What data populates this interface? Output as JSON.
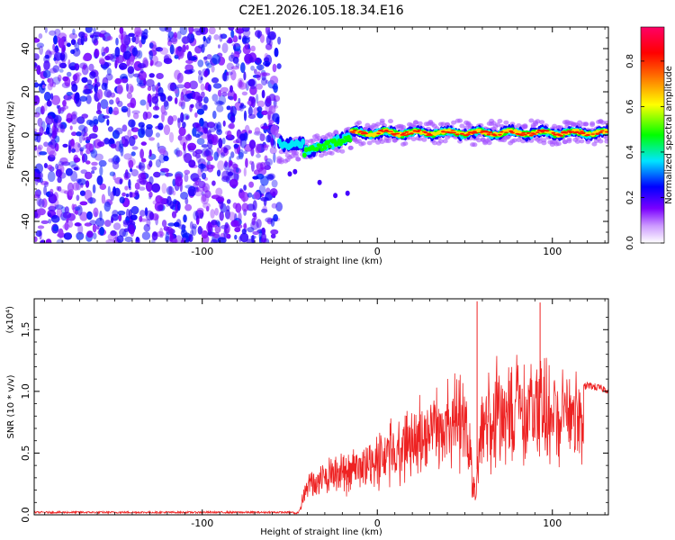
{
  "title": "C2E1.2026.105.18.34.E16",
  "chart_data": [
    {
      "type": "heatmap",
      "name": "spectrogram",
      "xlabel": "Height of straight line (km)",
      "ylabel": "Frequency (Hz)",
      "xlim": [
        -196,
        132
      ],
      "ylim": [
        -50,
        50
      ],
      "xticks": [
        -100,
        0,
        100
      ],
      "xtick_labels": [
        "-100",
        "0",
        "100"
      ],
      "yticks": [
        -40,
        -20,
        0,
        20,
        40
      ],
      "ytick_labels": [
        "-40",
        "-20",
        "0",
        "20",
        "40"
      ],
      "colorbar": {
        "label": "Normalized spectral amplitude",
        "range": [
          0,
          0.95
        ],
        "ticks": [
          0.0,
          0.2,
          0.4,
          0.6,
          0.8
        ],
        "tick_labels": [
          "0.0",
          "0.2",
          "0.4",
          "0.6",
          "0.8"
        ],
        "colors": [
          "#ffffff",
          "#7a00ff",
          "#0000ff",
          "#00e5ff",
          "#00ff00",
          "#ffff00",
          "#ff6600",
          "#ff0000",
          "#ff0066"
        ]
      },
      "regions": [
        {
          "x_range": [
            -196,
            -56
          ],
          "frequency_range": [
            -50,
            50
          ],
          "amplitude": [
            0.0,
            0.2
          ],
          "description": "noise"
        },
        {
          "x_range": [
            -56,
            -15
          ],
          "frequency_center": [
            -8,
            -2
          ],
          "amplitude": [
            0.2,
            0.5
          ]
        },
        {
          "x_range": [
            -15,
            132
          ],
          "frequency_center": [
            0,
            2
          ],
          "amplitude": [
            0.5,
            0.95
          ]
        }
      ]
    },
    {
      "type": "line",
      "name": "snr",
      "xlabel": "Height of straight line (km)",
      "ylabel": "SNR (10 * v/v)",
      "y_multiplier": "(x10⁴)",
      "xlim": [
        -196,
        132
      ],
      "ylim": [
        0,
        1.75
      ],
      "xticks": [
        -100,
        0,
        100
      ],
      "xtick_labels": [
        "-100",
        "0",
        "100"
      ],
      "yticks": [
        0.0,
        0.5,
        1.0,
        1.5
      ],
      "ytick_labels": [
        "0.0",
        "0.5",
        "1.0",
        "1.5"
      ],
      "series": [
        {
          "color": "#ee2222",
          "x": [
            -196,
            -60,
            -45,
            -40,
            -35,
            -30,
            -20,
            -10,
            0,
            10,
            20,
            30,
            40,
            50,
            56,
            60,
            70,
            80,
            95,
            110,
            115,
            120,
            132
          ],
          "y": [
            0.02,
            0.02,
            0.02,
            0.35,
            0.3,
            0.4,
            0.45,
            0.5,
            0.58,
            0.7,
            0.8,
            0.92,
            1.0,
            1.05,
            0.2,
            1.05,
            1.1,
            1.1,
            1.15,
            1.05,
            1.0,
            1.05,
            1.01
          ]
        }
      ],
      "spikes": [
        {
          "x": 57,
          "y": 1.73
        },
        {
          "x": 93,
          "y": 1.72
        },
        {
          "x": 55,
          "y": 0.17
        },
        {
          "x": 110,
          "y": 0.62
        }
      ]
    }
  ]
}
